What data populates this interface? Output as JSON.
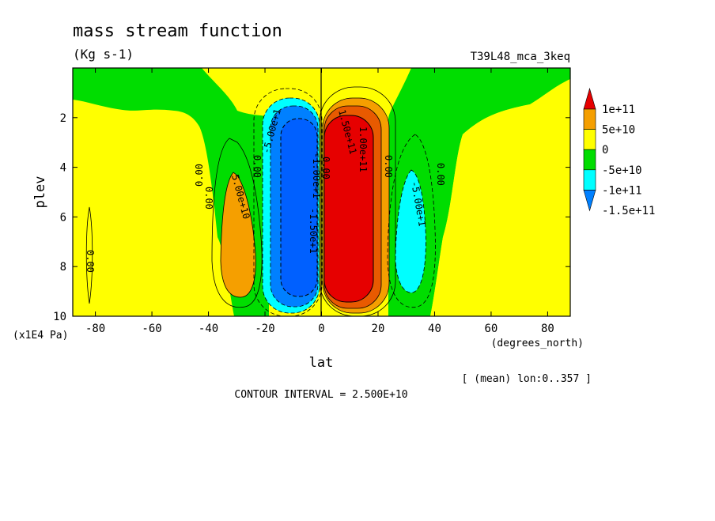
{
  "chart_data": {
    "type": "contour",
    "title": "mass stream function",
    "units": "(Kg s-1)",
    "experiment": "T39L48_mca_3keq",
    "xlabel": "lat",
    "xunits": "(degrees_north)",
    "ylabel": "plev",
    "yunits": "(x1E4 Pa)",
    "xlim": [
      -88,
      88
    ],
    "ylim": [
      10,
      0
    ],
    "xticks": [
      -80,
      -60,
      -40,
      -20,
      0,
      20,
      40,
      60,
      80
    ],
    "yticks": [
      2,
      4,
      6,
      8,
      10
    ],
    "contour_interval": "CONTOUR INTERVAL = 2.500E+10",
    "note": "[ (mean) lon:0..357 ]",
    "colorbar": {
      "labels": [
        "1e+11",
        "5e+10",
        "0",
        "-5e+10",
        "-1e+11",
        "-1.5e+11"
      ],
      "colors": [
        "#e60000",
        "#f59f00",
        "#ffff00",
        "#00dd00",
        "#00ffff",
        "#0080ff"
      ]
    },
    "contour_labels": [
      "0.00",
      "5.00e+10",
      "-5.00e+1",
      "-1.00e+1",
      "-1.50e+1",
      "1.00e+11",
      "1.50e+11",
      "0.00",
      "-5.00e+1",
      "0.00",
      "0.00",
      "0.00",
      "0.00",
      "0.00"
    ],
    "cells": [
      {
        "name": "southern-ferrel-cell",
        "sign": "positive",
        "lat_center": -32,
        "plev_center": 6.5,
        "extreme": 50000000000.0
      },
      {
        "name": "southern-hadley-cell",
        "sign": "negative",
        "lat_center": -10,
        "plev_center": 5.5,
        "extreme": -150000000000.0
      },
      {
        "name": "northern-hadley-cell",
        "sign": "positive",
        "lat_center": 10,
        "plev_center": 5.5,
        "extreme": 150000000000.0
      },
      {
        "name": "northern-ferrel-cell",
        "sign": "negative",
        "lat_center": 32,
        "plev_center": 6.5,
        "extreme": -50000000000.0
      }
    ]
  }
}
